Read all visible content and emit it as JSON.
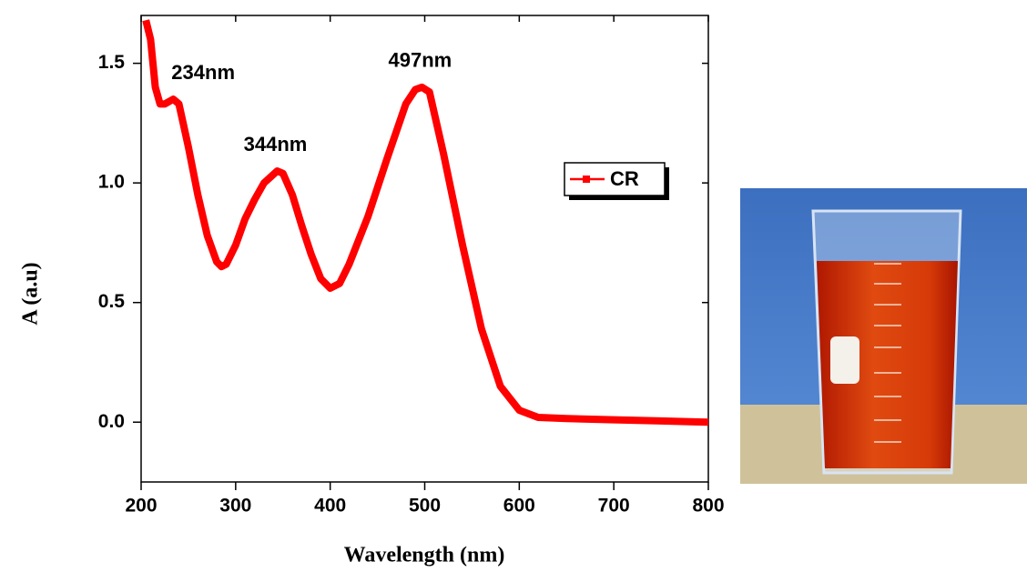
{
  "chart_data": {
    "type": "line",
    "xlabel": "Wavelength (nm)",
    "ylabel": "A (a.u)",
    "x": [
      205,
      210,
      215,
      220,
      225,
      234,
      240,
      250,
      260,
      270,
      280,
      285,
      290,
      300,
      310,
      320,
      330,
      344,
      350,
      360,
      370,
      380,
      390,
      400,
      410,
      420,
      440,
      460,
      480,
      490,
      497,
      505,
      520,
      540,
      560,
      580,
      600,
      620,
      650,
      700,
      750,
      800
    ],
    "series": [
      {
        "name": "CR",
        "color": "#ff0000",
        "values": [
          1.68,
          1.6,
          1.4,
          1.33,
          1.33,
          1.35,
          1.33,
          1.15,
          0.95,
          0.78,
          0.67,
          0.65,
          0.66,
          0.74,
          0.85,
          0.93,
          1.0,
          1.05,
          1.04,
          0.95,
          0.82,
          0.7,
          0.6,
          0.56,
          0.58,
          0.66,
          0.86,
          1.1,
          1.33,
          1.39,
          1.4,
          1.38,
          1.12,
          0.74,
          0.39,
          0.15,
          0.05,
          0.02,
          0.015,
          0.01,
          0.005,
          0.0
        ]
      }
    ],
    "annotations": [
      {
        "text": "234nm",
        "x": 234,
        "y": 1.35
      },
      {
        "text": "344nm",
        "x": 344,
        "y": 1.05
      },
      {
        "text": "497nm",
        "x": 497,
        "y": 1.4
      }
    ],
    "xlim": [
      200,
      800
    ],
    "xticks": [
      200,
      300,
      400,
      500,
      600,
      700,
      800
    ],
    "ylim": [
      -0.25,
      1.7
    ],
    "yticks": [
      {
        "value": 0,
        "label": "0.0"
      },
      0.5,
      {
        "value": 1,
        "label": "1.0"
      },
      1.5
    ],
    "legend": "upper right",
    "grid": false
  }
}
